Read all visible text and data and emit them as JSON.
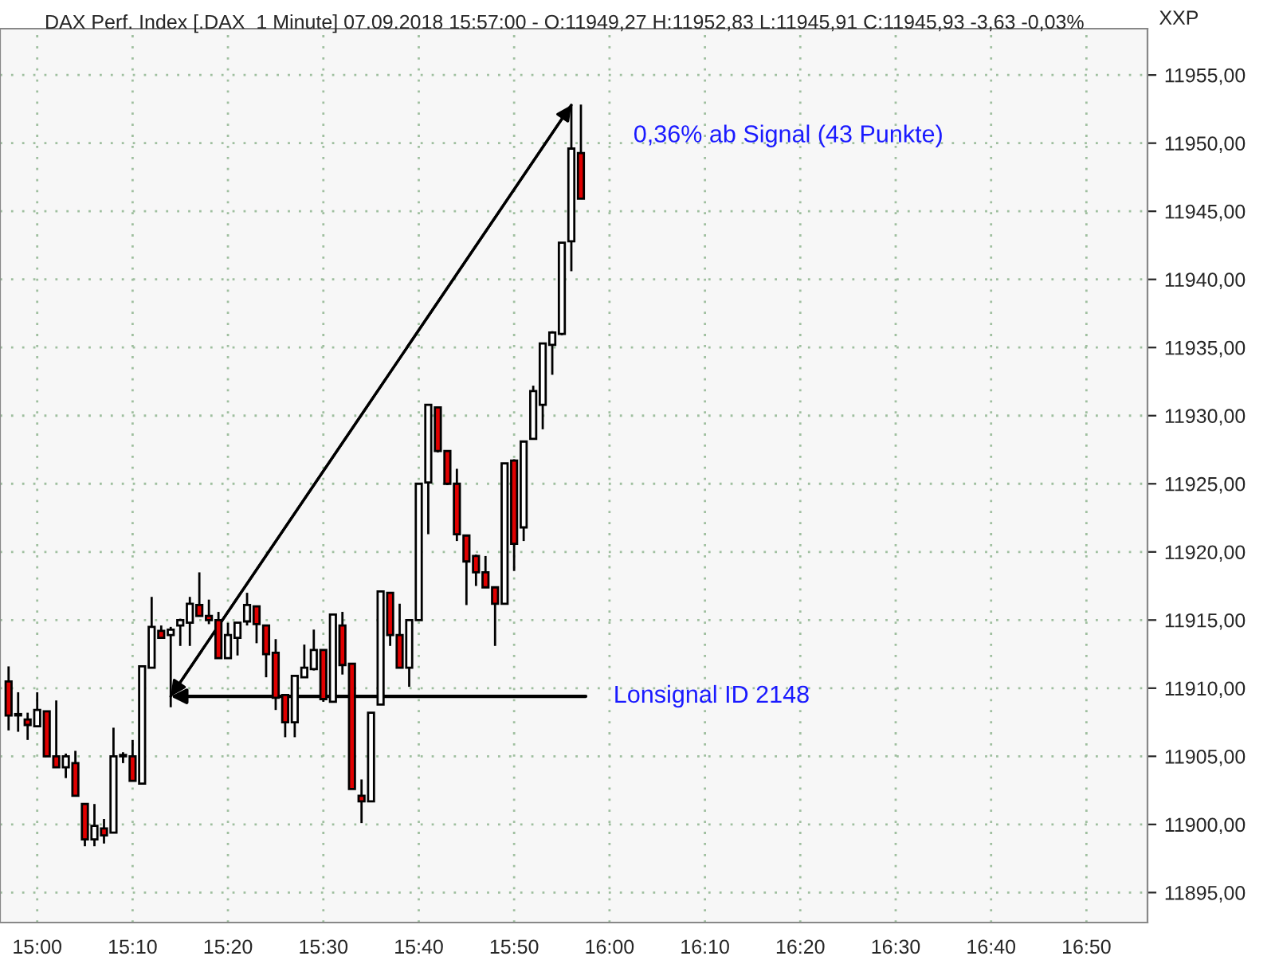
{
  "chart_data": {
    "type": "candlestick",
    "title": "DAX Perf. Index [.DAX  1 Minute] 07.09.2018 15:57:00 - O:11949,27 H:11952,83 L:11945,91 C:11945,93 -3,63 -0,03%",
    "ylabel": "XXP",
    "x": [
      14.95,
      14.9667,
      14.9833,
      15.0,
      15.0167,
      15.0333,
      15.05,
      15.0667,
      15.0833,
      15.1,
      15.1167,
      15.1333,
      15.15,
      15.1667,
      15.1833,
      15.2,
      15.2167,
      15.2333,
      15.25,
      15.2667,
      15.2833,
      15.3,
      15.3167,
      15.3333,
      15.35,
      15.3667,
      15.3833,
      15.4,
      15.4167,
      15.4333,
      15.45,
      15.4667,
      15.4833,
      15.5,
      15.5167,
      15.5333,
      15.55,
      15.5667,
      15.5833,
      15.6,
      15.6167,
      15.6333,
      15.65,
      15.6667,
      15.6833,
      15.7,
      15.7167,
      15.7333,
      15.75,
      15.7667,
      15.7833,
      15.8,
      15.8167,
      15.8333,
      15.85,
      15.8667,
      15.8833,
      15.9,
      15.9167,
      15.9333,
      15.95
    ],
    "ohlc": [
      [
        11910.5,
        11911.6,
        11906.9,
        11908.0
      ],
      [
        11908.1,
        11909.7,
        11906.8,
        11908.0
      ],
      [
        11907.7,
        11908.2,
        11906.2,
        11907.3
      ],
      [
        11907.2,
        11909.7,
        11907.2,
        11908.4
      ],
      [
        11908.3,
        11908.3,
        11905.0,
        11905.0
      ],
      [
        11905.0,
        11909.1,
        11904.2,
        11904.2
      ],
      [
        11904.2,
        11905.2,
        11903.4,
        11905.0
      ],
      [
        11904.5,
        11905.4,
        11902.1,
        11902.1
      ],
      [
        11901.5,
        11901.5,
        11898.4,
        11898.9
      ],
      [
        11898.9,
        11901.5,
        11898.4,
        11899.9
      ],
      [
        11899.7,
        11900.4,
        11898.6,
        11899.2
      ],
      [
        11899.4,
        11907.1,
        11899.4,
        11905.0
      ],
      [
        11905.1,
        11905.3,
        11904.5,
        11905.0
      ],
      [
        11905.0,
        11906.2,
        11903.2,
        11903.2
      ],
      [
        11903.0,
        11911.6,
        11903.0,
        11911.6
      ],
      [
        11911.5,
        11916.7,
        11911.5,
        11914.5
      ],
      [
        11914.2,
        11914.6,
        11913.7,
        11913.7
      ],
      [
        11913.9,
        11914.5,
        11908.6,
        11914.3
      ],
      [
        11914.6,
        11915.1,
        11913.1,
        11915.0
      ],
      [
        11914.8,
        11916.7,
        11913.1,
        11916.2
      ],
      [
        11916.1,
        11918.5,
        11915.3,
        11915.3
      ],
      [
        11915.3,
        11916.5,
        11914.7,
        11915.0
      ],
      [
        11915.0,
        11915.6,
        11912.2,
        11912.2
      ],
      [
        11912.2,
        11914.8,
        11912.2,
        11913.9
      ],
      [
        11913.7,
        11914.8,
        11912.4,
        11914.8
      ],
      [
        11914.9,
        11917.0,
        11914.6,
        11916.1
      ],
      [
        11916.0,
        11916.0,
        11913.3,
        11914.7
      ],
      [
        11914.6,
        11914.6,
        11910.8,
        11912.5
      ],
      [
        11912.6,
        11913.6,
        11908.4,
        11909.3
      ],
      [
        11909.5,
        11909.5,
        11906.4,
        11907.5
      ],
      [
        11907.5,
        11910.9,
        11906.4,
        11910.9
      ],
      [
        11910.8,
        11913.2,
        11910.8,
        11911.5
      ],
      [
        11911.4,
        11914.3,
        11911.3,
        11912.8
      ],
      [
        11912.8,
        11912.8,
        11909.0,
        11909.2
      ],
      [
        11909.0,
        11915.4,
        11909.0,
        11915.4
      ],
      [
        11914.6,
        11915.6,
        11911.0,
        11911.7
      ],
      [
        11911.8,
        11911.8,
        11902.6,
        11902.6
      ],
      [
        11902.1,
        11903.3,
        11900.1,
        11901.7
      ],
      [
        11901.7,
        11908.2,
        11901.7,
        11908.2
      ],
      [
        11908.8,
        11917.1,
        11908.8,
        11917.1
      ],
      [
        11917.0,
        11917.0,
        11913.1,
        11913.9
      ],
      [
        11913.9,
        11916.2,
        11911.5,
        11911.5
      ],
      [
        11911.5,
        11915.0,
        11910.1,
        11915.0
      ],
      [
        11915.0,
        11925.0,
        11915.0,
        11925.0
      ],
      [
        11925.1,
        11930.8,
        11921.3,
        11930.8
      ],
      [
        11930.6,
        11930.6,
        11927.3,
        11927.4
      ],
      [
        11927.4,
        11927.4,
        11924.9,
        11925.0
      ],
      [
        11925.0,
        11926.1,
        11920.8,
        11921.3
      ],
      [
        11921.2,
        11921.2,
        11916.1,
        11919.3
      ],
      [
        11919.7,
        11919.8,
        11917.5,
        11918.5
      ],
      [
        11918.5,
        11919.7,
        11917.4,
        11917.4
      ],
      [
        11917.4,
        11917.4,
        11913.1,
        11916.2
      ],
      [
        11916.2,
        11926.5,
        11916.2,
        11926.5
      ],
      [
        11926.7,
        11926.8,
        11918.6,
        11920.6
      ],
      [
        11921.8,
        11928.1,
        11920.8,
        11928.1
      ],
      [
        11928.3,
        11932.2,
        11928.3,
        11931.8
      ],
      [
        11930.8,
        11935.3,
        11929.0,
        11935.3
      ],
      [
        11935.2,
        11936.2,
        11933.0,
        11936.1
      ],
      [
        11936.0,
        11942.7,
        11935.9,
        11942.7
      ],
      [
        11942.8,
        11952.8,
        11940.6,
        11949.6
      ],
      [
        11949.27,
        11952.83,
        11945.91,
        11945.93
      ]
    ],
    "xlim": [
      14.935,
      16.94
    ],
    "xticks": [
      {
        "value": 15.0,
        "label": "15:00"
      },
      {
        "value": 15.1667,
        "label": "15:10"
      },
      {
        "value": 15.3333,
        "label": "15:20"
      },
      {
        "value": 15.5,
        "label": "15:30"
      },
      {
        "value": 15.6667,
        "label": "15:40"
      },
      {
        "value": 15.8333,
        "label": "15:50"
      },
      {
        "value": 16.0,
        "label": "16:00"
      },
      {
        "value": 16.1667,
        "label": "16:10"
      },
      {
        "value": 16.3333,
        "label": "16:20"
      },
      {
        "value": 16.5,
        "label": "16:30"
      },
      {
        "value": 16.6667,
        "label": "16:40"
      },
      {
        "value": 16.8333,
        "label": "16:50"
      }
    ],
    "ylim": [
      11892.8,
      11958.4
    ],
    "yticks": [
      {
        "value": 11895,
        "label": "11895,00"
      },
      {
        "value": 11900,
        "label": "11900,00"
      },
      {
        "value": 11905,
        "label": "11905,00"
      },
      {
        "value": 11910,
        "label": "11910,00"
      },
      {
        "value": 11915,
        "label": "11915,00"
      },
      {
        "value": 11920,
        "label": "11920,00"
      },
      {
        "value": 11925,
        "label": "11925,00"
      },
      {
        "value": 11930,
        "label": "11930,00"
      },
      {
        "value": 11935,
        "label": "11935,00"
      },
      {
        "value": 11940,
        "label": "11940,00"
      },
      {
        "value": 11945,
        "label": "11945,00"
      },
      {
        "value": 11950,
        "label": "11950,00"
      },
      {
        "value": 11955,
        "label": "11955,00"
      }
    ],
    "grid": true,
    "annotations": [
      {
        "text": "0,36% ab Signal (43 Punkte)",
        "x": 15.9333,
        "y": 11952.8
      },
      {
        "text": "Lonsignal ID 2148",
        "x": 15.2333,
        "y": 11909.4
      }
    ]
  }
}
